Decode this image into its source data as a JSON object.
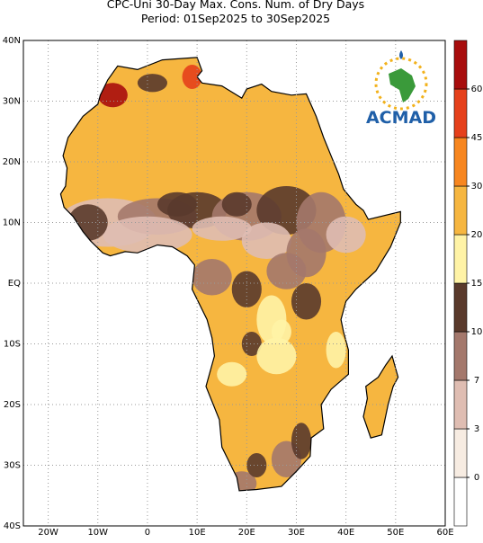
{
  "chart_data": {
    "type": "map",
    "title": "CPC-Uni 30-Day Max. Cons. Num. of Dry Days",
    "subtitle": "Period: 01Sep2025 to 30Sep2025",
    "logo_text": "ACMAD",
    "xlim": [
      -25,
      60
    ],
    "ylim": [
      -40,
      40
    ],
    "xticks": [
      {
        "value": -20,
        "label": "20W"
      },
      {
        "value": -10,
        "label": "10W"
      },
      0,
      {
        "value": 10,
        "label": "10E"
      },
      {
        "value": 20,
        "label": "20E"
      },
      {
        "value": 30,
        "label": "30E"
      },
      {
        "value": 40,
        "label": "40E"
      },
      {
        "value": 50,
        "label": "50E"
      },
      {
        "value": 60,
        "label": "60E"
      }
    ],
    "yticks": [
      {
        "value": -40,
        "label": "40S"
      },
      {
        "value": -30,
        "label": "30S"
      },
      {
        "value": -20,
        "label": "20S"
      },
      {
        "value": -10,
        "label": "10S"
      },
      {
        "value": 0,
        "label": "EQ"
      },
      {
        "value": 10,
        "label": "10N"
      },
      {
        "value": 20,
        "label": "20N"
      },
      {
        "value": 30,
        "label": "30N"
      },
      {
        "value": 40,
        "label": "40N"
      }
    ],
    "grid": true,
    "colorbar": {
      "ticks": [
        0,
        3,
        7,
        10,
        15,
        20,
        30,
        45,
        60
      ],
      "colors": [
        "#ffffff",
        "#f7ece2",
        "#dfbdb2",
        "#a4786c",
        "#5a3a2c",
        "#fff3a6",
        "#f6b640",
        "#f7861f",
        "#e5401b",
        "#a80d0d"
      ]
    }
  }
}
